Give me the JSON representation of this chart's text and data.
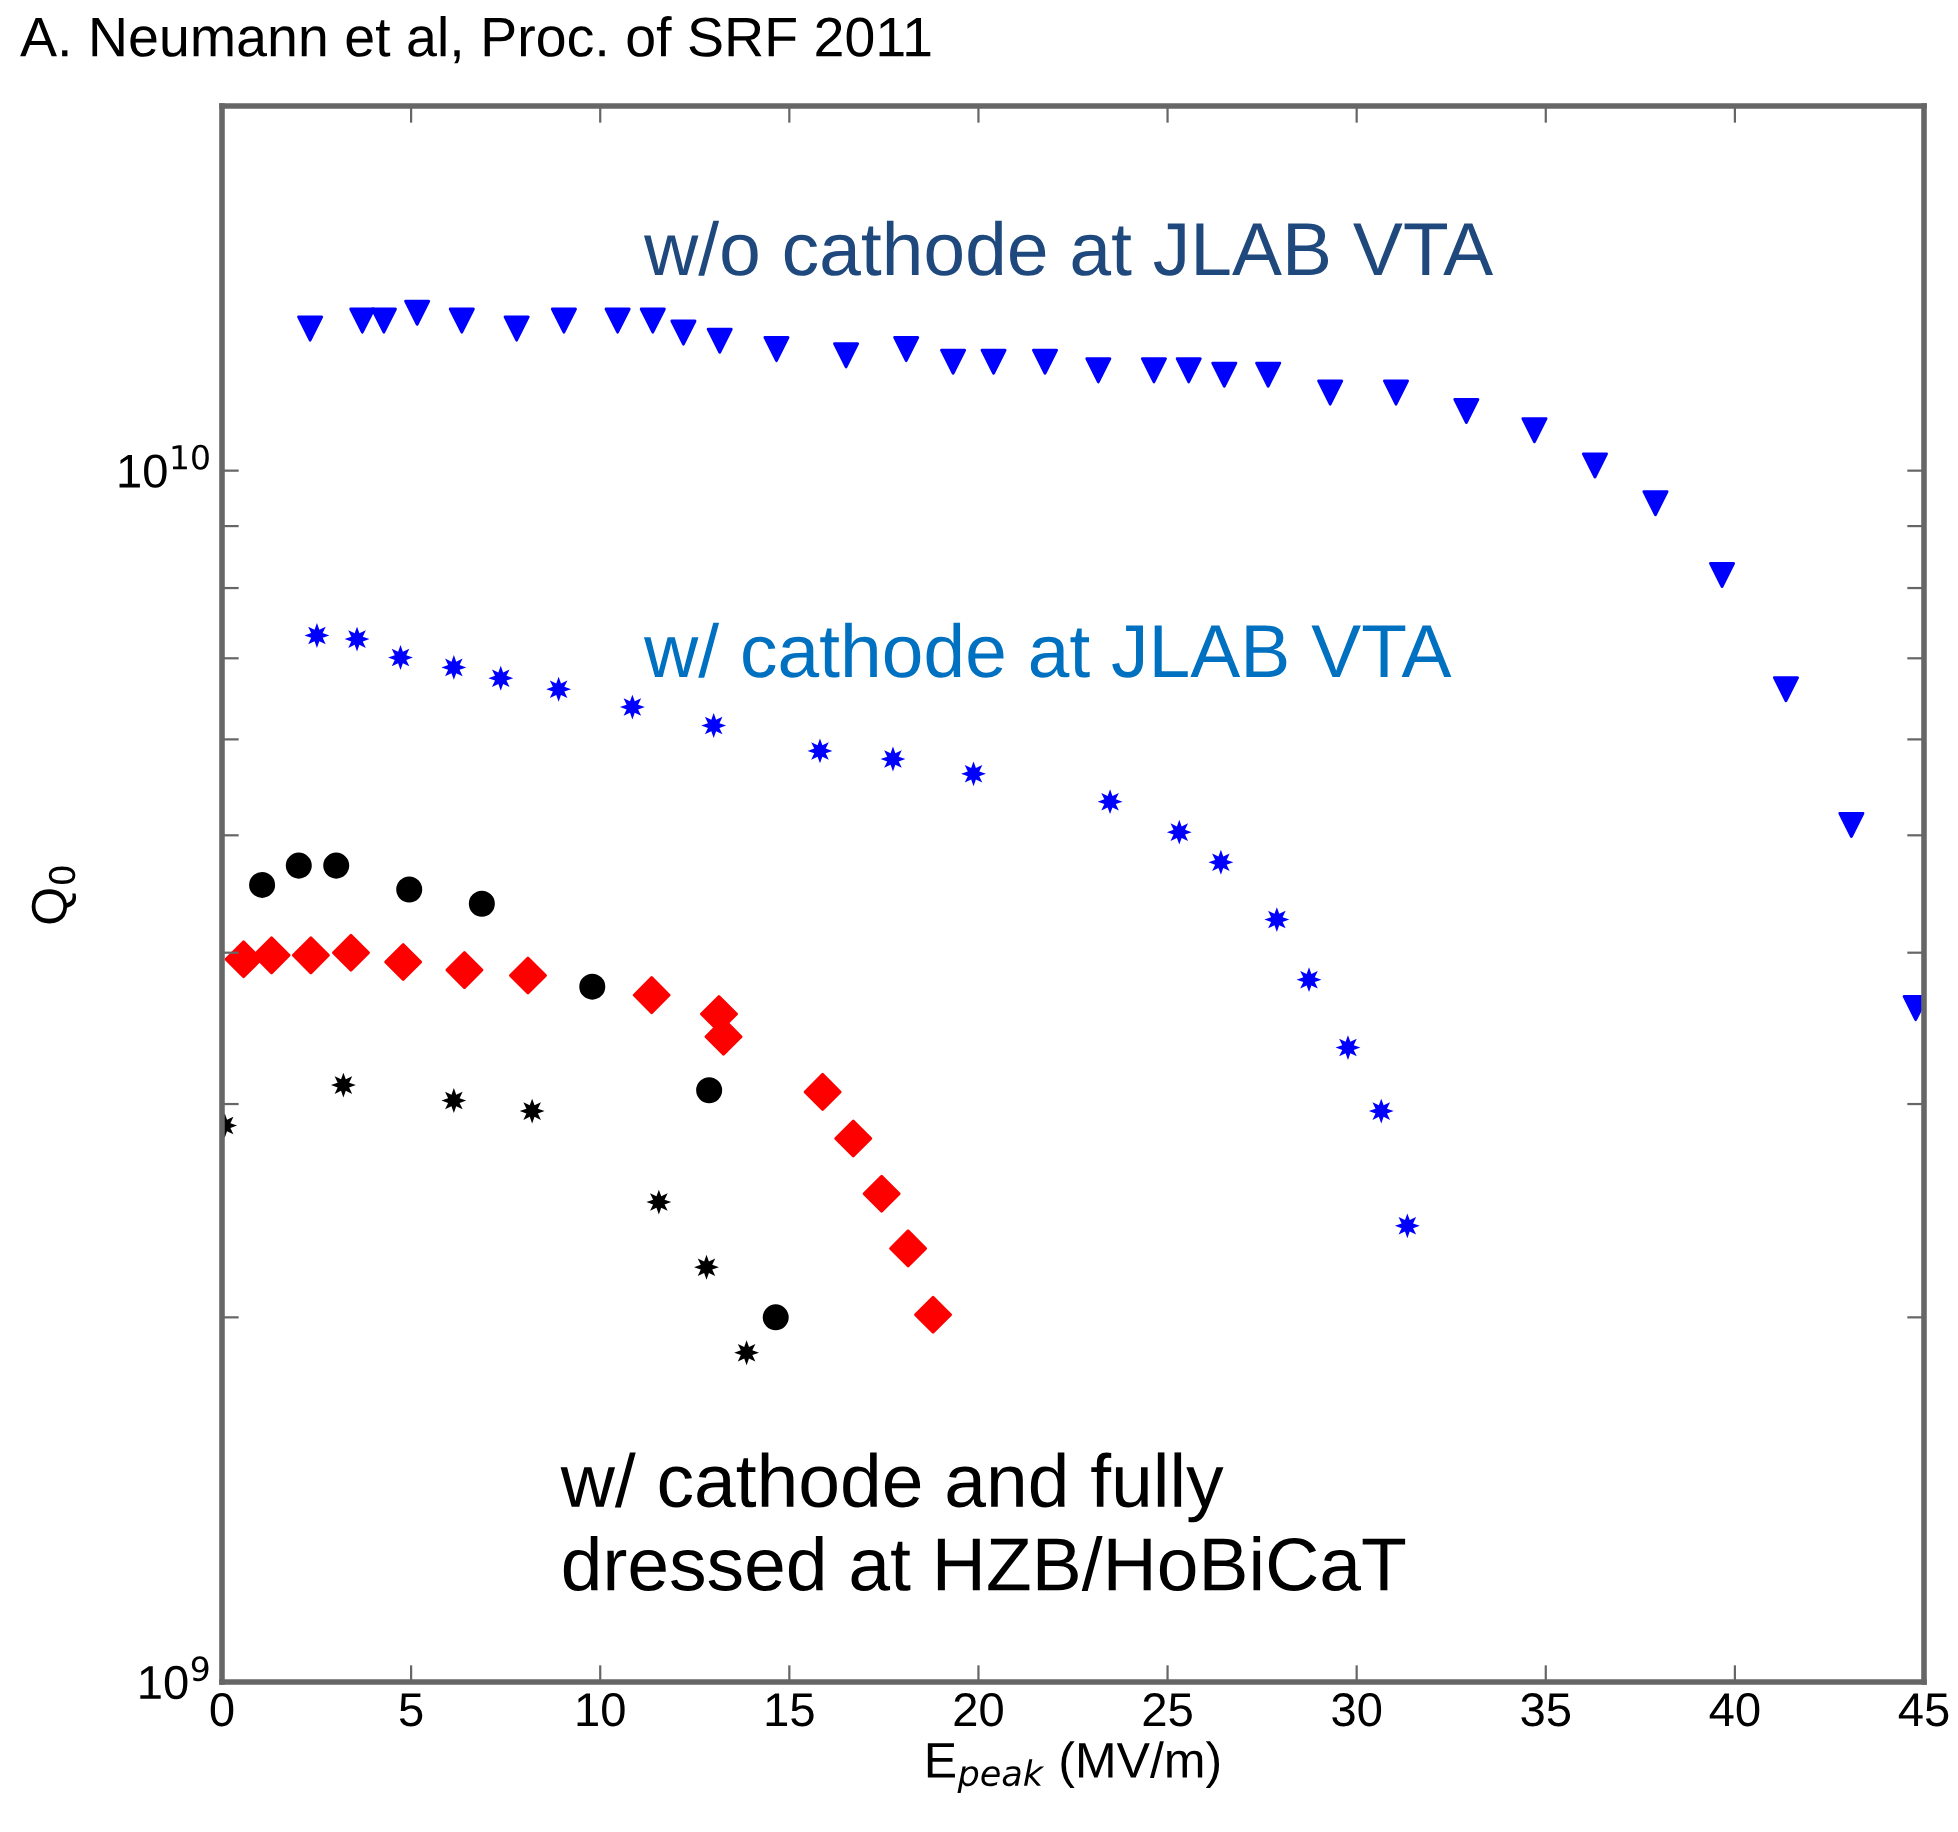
{
  "chart_data": {
    "type": "scatter",
    "title": "A. Neumann et al, Proc. of SRF 2011",
    "xlabel": "E$_{peak}$ (MV/m)",
    "ylabel": "Q$_{0}$",
    "log": "y",
    "grid": false,
    "legend": false,
    "xlim": [
      0,
      45
    ],
    "xticks": [
      0,
      5,
      10,
      15,
      20,
      25,
      30,
      35,
      40,
      45
    ],
    "ylim": [
      1000000000,
      20000000000
    ],
    "yticks": [
      {
        "value": 1000000000,
        "label": "10$^{9}$"
      },
      {
        "value": 2000000000,
        "label": null
      },
      {
        "value": 3000000000,
        "label": null
      },
      {
        "value": 4000000000,
        "label": null
      },
      {
        "value": 5000000000,
        "label": null
      },
      {
        "value": 6000000000,
        "label": null
      },
      {
        "value": 7000000000,
        "label": null
      },
      {
        "value": 8000000000,
        "label": null
      },
      {
        "value": 9000000000,
        "label": null
      },
      {
        "value": 10000000000,
        "label": "10$^{10}$"
      }
    ],
    "annotations": [
      "w/o cathode at JLAB VTA",
      "w/ cathode at JLAB VTA",
      "w/ cathode and fully\ndressed at HZB/HoBiCaT"
    ],
    "series": [
      {
        "color": "#0000ff",
        "marker": "triangle",
        "x": [
          2.33,
          3.71,
          4.28,
          5.16,
          6.34,
          7.79,
          9.04,
          10.46,
          11.39,
          12.2,
          13.16,
          14.66,
          16.5,
          18.09,
          19.33,
          20.4,
          21.76,
          23.17,
          24.64,
          25.56,
          26.5,
          27.66,
          29.3,
          31.04,
          32.9,
          34.7,
          36.3,
          37.9,
          39.66,
          41.35,
          43.08,
          44.78
        ],
        "values": [
          13100000000.0,
          13300000000.0,
          13300000000.0,
          13500000000.0,
          13300000000.0,
          13100000000.0,
          13300000000.0,
          13300000000.0,
          13300000000.0,
          13000000000.0,
          12800000000.0,
          12600000000.0,
          12450000000.0,
          12600000000.0,
          12300000000.0,
          12300000000.0,
          12300000000.0,
          12100000000.0,
          12100000000.0,
          12100000000.0,
          12000000000.0,
          12000000000.0,
          11600000000.0,
          11600000000.0,
          11200000000.0,
          10800000000.0,
          10100000000.0,
          9400000000.0,
          8200000000.0,
          6600000000.0,
          5100000000.0,
          3600000000.0
        ]
      },
      {
        "color": "#0000ff",
        "marker": "star",
        "x": [
          2.51,
          3.57,
          4.72,
          6.13,
          7.37,
          8.9,
          10.85,
          13.0,
          15.81,
          17.74,
          19.87,
          23.48,
          25.31,
          26.41,
          27.89,
          28.74,
          29.77,
          30.65,
          31.34
        ],
        "values": [
          7310000000.0,
          7260000000.0,
          7010000000.0,
          6880000000.0,
          6740000000.0,
          6600000000.0,
          6380000000.0,
          6160000000.0,
          5870000000.0,
          5780000000.0,
          5620000000.0,
          5330000000.0,
          5030000000.0,
          4750000000.0,
          4260000000.0,
          3800000000.0,
          3340000000.0,
          2960000000.0,
          2380000000.0
        ]
      },
      {
        "color": "#000000",
        "marker": "circle",
        "x": [
          1.06,
          2.03,
          3.02,
          4.95,
          6.87,
          9.79,
          12.88,
          14.64
        ],
        "values": [
          4550000000.0,
          4720000000.0,
          4720000000.0,
          4510000000.0,
          4390000000.0,
          3750000000.0,
          3080000000.0,
          2000000000.0
        ]
      },
      {
        "color": "#ff0000",
        "marker": "diamond",
        "x": [
          0.57,
          1.31,
          2.35,
          3.41,
          4.79,
          6.41,
          8.09,
          11.36,
          13.14,
          13.26,
          15.88,
          16.69,
          17.44,
          18.14,
          18.8
        ],
        "values": [
          3950000000.0,
          3980000000.0,
          3980000000.0,
          4000000000.0,
          3930000000.0,
          3870000000.0,
          3830000000.0,
          3690000000.0,
          3560000000.0,
          3410000000.0,
          3070000000.0,
          2810000000.0,
          2530000000.0,
          2280000000.0,
          2010000000.0
        ]
      },
      {
        "color": "#000000",
        "marker": "star",
        "x": [
          0.07,
          3.21,
          6.13,
          8.2,
          11.55,
          12.81,
          13.87
        ],
        "values": [
          2880000000.0,
          3110000000.0,
          3020000000.0,
          2960000000.0,
          2490000000.0,
          2200000000.0,
          1870000000.0
        ]
      }
    ]
  }
}
